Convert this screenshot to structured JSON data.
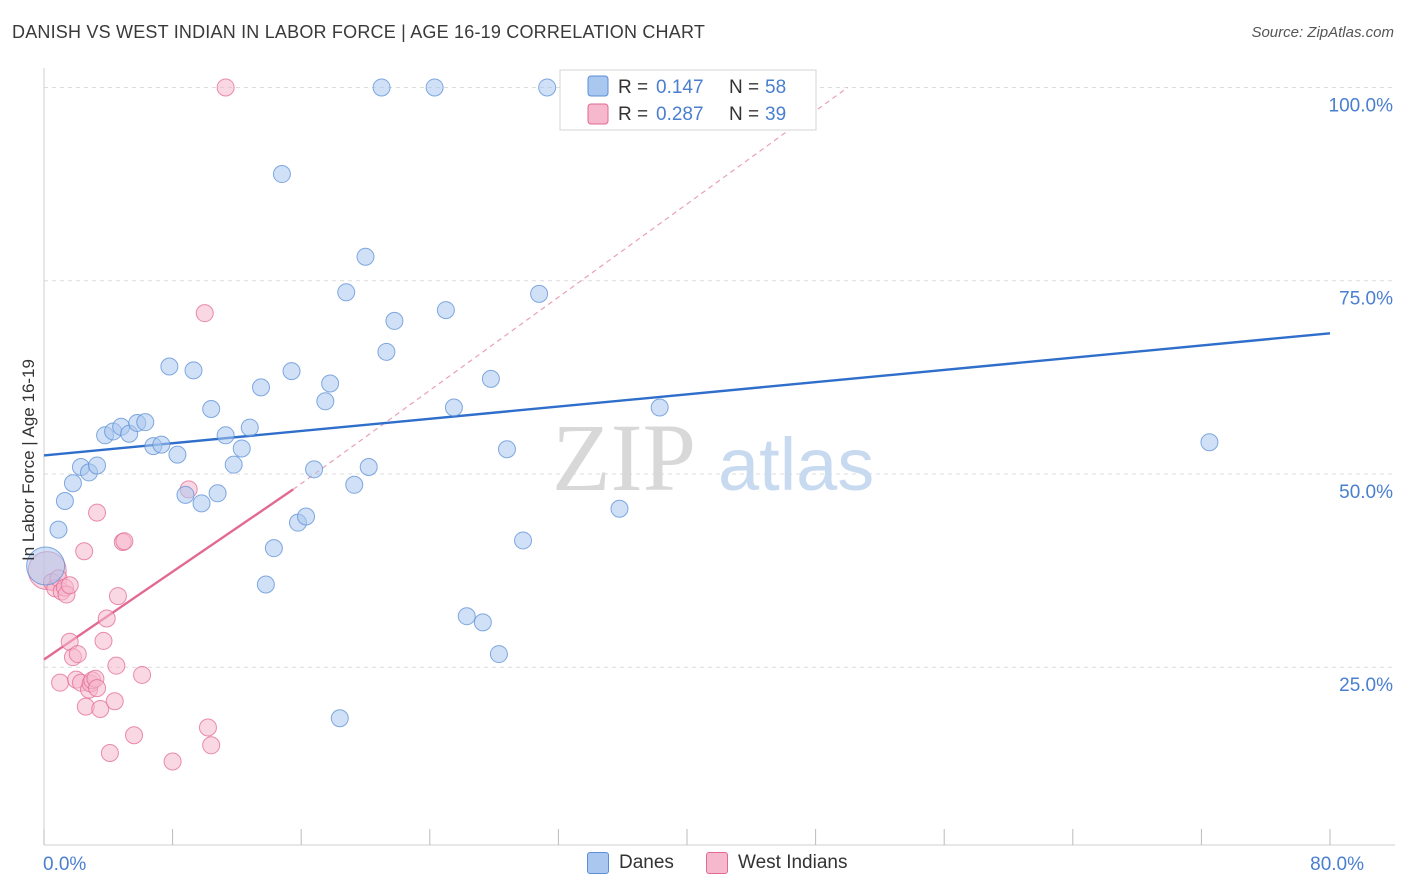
{
  "title": "DANISH VS WEST INDIAN IN LABOR FORCE | AGE 16-19 CORRELATION CHART",
  "source": "Source: ZipAtlas.com",
  "watermark": {
    "part1": "ZIP",
    "part2": "atlas"
  },
  "chart_data": {
    "type": "scatter",
    "xlabel": "",
    "ylabel": "In Labor Force | Age 16-19",
    "xlim": [
      0,
      80
    ],
    "ylim": [
      2,
      102
    ],
    "x_tick_labels": {
      "min": "0.0%",
      "max": "80.0%"
    },
    "y_ticks": [
      {
        "value": 100,
        "label": "100.0%"
      },
      {
        "value": 75,
        "label": "75.0%"
      },
      {
        "value": 50,
        "label": "50.0%"
      },
      {
        "value": 25,
        "label": "25.0%"
      }
    ],
    "x_minor_ticks": [
      8,
      16,
      24,
      32,
      40,
      48,
      56,
      64,
      72
    ],
    "legend": [
      {
        "name": "Danes",
        "r_label": "R =",
        "r_value": "0.147",
        "n_label": "N =",
        "n_value": "58"
      },
      {
        "name": "West Indians",
        "r_label": "R =",
        "r_value": "0.287",
        "n_label": "N =",
        "n_value": "39"
      }
    ],
    "series": [
      {
        "name": "Danes",
        "color": "#5b8fd6",
        "fill": "#a9c7ef",
        "trendline": {
          "x": [
            0,
            80
          ],
          "y": [
            52.4,
            68.2
          ]
        },
        "points": [
          {
            "x": 0.1,
            "y": 38.1,
            "big": true
          },
          {
            "x": 0.9,
            "y": 42.8
          },
          {
            "x": 1.3,
            "y": 46.5
          },
          {
            "x": 1.8,
            "y": 48.8
          },
          {
            "x": 2.3,
            "y": 50.9
          },
          {
            "x": 2.8,
            "y": 50.2
          },
          {
            "x": 3.3,
            "y": 51.1
          },
          {
            "x": 3.8,
            "y": 55.0
          },
          {
            "x": 4.3,
            "y": 55.5
          },
          {
            "x": 4.8,
            "y": 56.1
          },
          {
            "x": 5.3,
            "y": 55.2
          },
          {
            "x": 5.8,
            "y": 56.6
          },
          {
            "x": 6.3,
            "y": 56.7
          },
          {
            "x": 6.8,
            "y": 53.6
          },
          {
            "x": 7.3,
            "y": 53.8
          },
          {
            "x": 7.8,
            "y": 63.9
          },
          {
            "x": 8.3,
            "y": 52.5
          },
          {
            "x": 8.8,
            "y": 47.3
          },
          {
            "x": 9.3,
            "y": 63.4
          },
          {
            "x": 9.8,
            "y": 46.2
          },
          {
            "x": 10.4,
            "y": 58.4
          },
          {
            "x": 10.8,
            "y": 47.5
          },
          {
            "x": 11.3,
            "y": 55.0
          },
          {
            "x": 11.8,
            "y": 51.2
          },
          {
            "x": 12.3,
            "y": 53.3
          },
          {
            "x": 12.8,
            "y": 56.0
          },
          {
            "x": 13.5,
            "y": 61.2
          },
          {
            "x": 13.8,
            "y": 35.7
          },
          {
            "x": 14.3,
            "y": 40.4
          },
          {
            "x": 14.8,
            "y": 88.8
          },
          {
            "x": 15.4,
            "y": 63.3
          },
          {
            "x": 15.8,
            "y": 43.7
          },
          {
            "x": 16.3,
            "y": 44.5
          },
          {
            "x": 16.8,
            "y": 50.6
          },
          {
            "x": 17.5,
            "y": 59.4
          },
          {
            "x": 17.8,
            "y": 61.7
          },
          {
            "x": 18.4,
            "y": 18.4
          },
          {
            "x": 18.8,
            "y": 73.5
          },
          {
            "x": 19.3,
            "y": 48.6
          },
          {
            "x": 20.0,
            "y": 78.1
          },
          {
            "x": 20.2,
            "y": 50.9
          },
          {
            "x": 21.0,
            "y": 100.0
          },
          {
            "x": 21.3,
            "y": 65.8
          },
          {
            "x": 21.8,
            "y": 69.8
          },
          {
            "x": 24.3,
            "y": 100.0
          },
          {
            "x": 25.0,
            "y": 71.2
          },
          {
            "x": 25.5,
            "y": 58.6
          },
          {
            "x": 26.3,
            "y": 31.6
          },
          {
            "x": 27.3,
            "y": 30.8
          },
          {
            "x": 27.8,
            "y": 62.3
          },
          {
            "x": 28.3,
            "y": 26.7
          },
          {
            "x": 28.8,
            "y": 53.2
          },
          {
            "x": 29.8,
            "y": 41.4
          },
          {
            "x": 30.8,
            "y": 73.3
          },
          {
            "x": 31.3,
            "y": 100.0
          },
          {
            "x": 35.8,
            "y": 45.5
          },
          {
            "x": 38.3,
            "y": 58.6
          },
          {
            "x": 72.5,
            "y": 54.1
          }
        ]
      },
      {
        "name": "West Indians",
        "color": "#e26a92",
        "fill": "#f6b8cc",
        "trendline": {
          "x": [
            0,
            15.5
          ],
          "y": [
            26.0,
            48.0
          ]
        },
        "trendline_ext": {
          "x": [
            15.5,
            50
          ],
          "y": [
            48.0,
            100.0
          ]
        },
        "points": [
          {
            "x": 0.2,
            "y": 37.5,
            "big": true
          },
          {
            "x": 0.5,
            "y": 36.0
          },
          {
            "x": 0.7,
            "y": 35.2
          },
          {
            "x": 0.9,
            "y": 36.5
          },
          {
            "x": 1.1,
            "y": 34.8
          },
          {
            "x": 1.3,
            "y": 35.3
          },
          {
            "x": 1.4,
            "y": 34.4
          },
          {
            "x": 1.6,
            "y": 35.6
          },
          {
            "x": 1.0,
            "y": 23.0
          },
          {
            "x": 1.6,
            "y": 28.3
          },
          {
            "x": 1.8,
            "y": 26.3
          },
          {
            "x": 2.0,
            "y": 23.4
          },
          {
            "x": 2.1,
            "y": 26.7
          },
          {
            "x": 2.3,
            "y": 23.0
          },
          {
            "x": 2.5,
            "y": 40.0
          },
          {
            "x": 2.6,
            "y": 19.9
          },
          {
            "x": 2.8,
            "y": 22.1
          },
          {
            "x": 2.9,
            "y": 22.9
          },
          {
            "x": 3.0,
            "y": 23.3
          },
          {
            "x": 3.2,
            "y": 23.5
          },
          {
            "x": 3.3,
            "y": 22.3
          },
          {
            "x": 3.3,
            "y": 45.0
          },
          {
            "x": 3.5,
            "y": 19.6
          },
          {
            "x": 3.7,
            "y": 28.4
          },
          {
            "x": 3.9,
            "y": 31.3
          },
          {
            "x": 4.1,
            "y": 13.9
          },
          {
            "x": 4.4,
            "y": 20.6
          },
          {
            "x": 4.5,
            "y": 25.2
          },
          {
            "x": 4.6,
            "y": 34.2
          },
          {
            "x": 4.9,
            "y": 41.2
          },
          {
            "x": 5.0,
            "y": 41.3
          },
          {
            "x": 5.6,
            "y": 16.2
          },
          {
            "x": 6.1,
            "y": 24.0
          },
          {
            "x": 8.0,
            "y": 12.8
          },
          {
            "x": 9.0,
            "y": 48.0
          },
          {
            "x": 10.0,
            "y": 70.8
          },
          {
            "x": 10.2,
            "y": 17.2
          },
          {
            "x": 10.4,
            "y": 14.9
          },
          {
            "x": 11.3,
            "y": 100.0
          }
        ]
      }
    ]
  }
}
